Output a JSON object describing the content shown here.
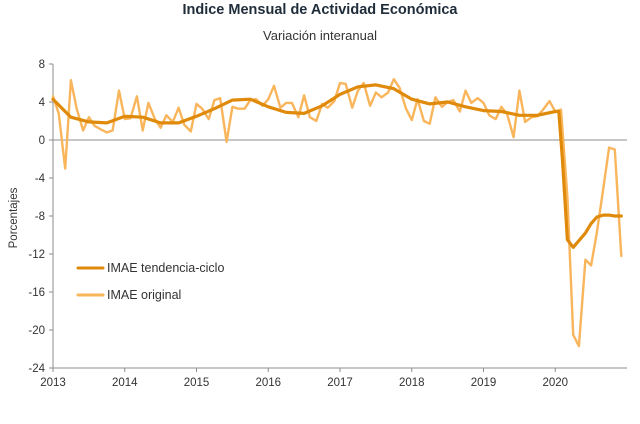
{
  "chart_data": {
    "type": "line",
    "title": "Indice Mensual de  Actividad Económica",
    "subtitle": "Variación interanual",
    "xlabel": "",
    "ylabel": "Porcentajes",
    "ylim": [
      -24,
      8
    ],
    "xlim": [
      2013,
      2021
    ],
    "yticks": [
      8,
      4,
      0,
      -4,
      -8,
      -12,
      -16,
      -20,
      -24
    ],
    "xticks": [
      "2013",
      "2014",
      "2015",
      "2016",
      "2017",
      "2018",
      "2019",
      "2020"
    ],
    "grid": false,
    "zero_line": true,
    "legend_position": "lower-left",
    "colors": {
      "tendencia": "#e08a0b",
      "original": "#f9b55b"
    },
    "series": [
      {
        "name": "IMAE tendencia-ciclo",
        "x": [
          2013.0,
          2013.25,
          2013.5,
          2013.75,
          2014.0,
          2014.25,
          2014.5,
          2014.75,
          2015.0,
          2015.25,
          2015.5,
          2015.75,
          2016.0,
          2016.25,
          2016.5,
          2016.75,
          2017.0,
          2017.25,
          2017.5,
          2017.75,
          2018.0,
          2018.25,
          2018.5,
          2018.75,
          2019.0,
          2019.25,
          2019.5,
          2019.75,
          2020.0,
          2020.05,
          2020.1,
          2020.17,
          2020.25,
          2020.33,
          2020.42,
          2020.5,
          2020.58,
          2020.67,
          2020.75,
          2020.83,
          2020.92
        ],
        "values": [
          4.3,
          2.4,
          1.9,
          1.8,
          2.5,
          2.4,
          1.8,
          1.8,
          2.5,
          3.3,
          4.2,
          4.3,
          3.5,
          2.9,
          2.8,
          3.6,
          4.8,
          5.6,
          5.8,
          5.4,
          4.3,
          3.8,
          4.0,
          3.5,
          3.1,
          3.0,
          2.6,
          2.6,
          3.0,
          3.0,
          -2.0,
          -10.5,
          -11.3,
          -10.6,
          -9.8,
          -8.8,
          -8.1,
          -7.9,
          -7.9,
          -8.0,
          -8.0
        ]
      },
      {
        "name": "IMAE original",
        "x": [
          2013.0,
          2013.08,
          2013.17,
          2013.25,
          2013.33,
          2013.42,
          2013.5,
          2013.58,
          2013.67,
          2013.75,
          2013.83,
          2013.92,
          2014.0,
          2014.08,
          2014.17,
          2014.25,
          2014.33,
          2014.42,
          2014.5,
          2014.58,
          2014.67,
          2014.75,
          2014.83,
          2014.92,
          2015.0,
          2015.08,
          2015.17,
          2015.25,
          2015.33,
          2015.42,
          2015.5,
          2015.58,
          2015.67,
          2015.75,
          2015.83,
          2015.92,
          2016.0,
          2016.08,
          2016.17,
          2016.25,
          2016.33,
          2016.42,
          2016.5,
          2016.58,
          2016.67,
          2016.75,
          2016.83,
          2016.92,
          2017.0,
          2017.08,
          2017.17,
          2017.25,
          2017.33,
          2017.42,
          2017.5,
          2017.58,
          2017.67,
          2017.75,
          2017.83,
          2017.92,
          2018.0,
          2018.08,
          2018.17,
          2018.25,
          2018.33,
          2018.42,
          2018.5,
          2018.58,
          2018.67,
          2018.75,
          2018.83,
          2018.92,
          2019.0,
          2019.08,
          2019.17,
          2019.25,
          2019.33,
          2019.42,
          2019.5,
          2019.58,
          2019.67,
          2019.75,
          2019.83,
          2019.92,
          2020.0,
          2020.08,
          2020.17,
          2020.25,
          2020.33,
          2020.42,
          2020.5,
          2020.58,
          2020.67,
          2020.75,
          2020.83,
          2020.92
        ],
        "values": [
          4.6,
          2.8,
          -3.0,
          6.3,
          3.3,
          1.0,
          2.4,
          1.5,
          1.1,
          0.8,
          1.0,
          5.2,
          2.2,
          2.3,
          4.6,
          1.0,
          3.9,
          2.2,
          1.3,
          2.6,
          1.9,
          3.4,
          1.6,
          0.9,
          3.8,
          3.3,
          2.2,
          4.2,
          4.4,
          -0.2,
          3.5,
          3.3,
          3.3,
          4.2,
          4.3,
          3.6,
          4.3,
          5.7,
          3.4,
          3.9,
          3.9,
          2.4,
          4.7,
          2.4,
          2.0,
          3.8,
          3.4,
          4.1,
          6.0,
          5.9,
          3.4,
          5.2,
          6.0,
          3.6,
          5.0,
          4.5,
          5.0,
          6.4,
          5.5,
          3.3,
          2.1,
          4.3,
          2.0,
          1.7,
          4.5,
          3.5,
          4.0,
          4.2,
          3.0,
          5.2,
          3.9,
          4.4,
          3.9,
          2.6,
          2.2,
          3.5,
          2.7,
          0.3,
          5.2,
          1.9,
          2.4,
          2.5,
          3.2,
          4.1,
          3.0,
          3.2,
          -6.0,
          -20.5,
          -21.7,
          -12.6,
          -13.2,
          -9.7,
          -5.1,
          -0.8,
          -1.0,
          -12.2
        ]
      }
    ]
  }
}
